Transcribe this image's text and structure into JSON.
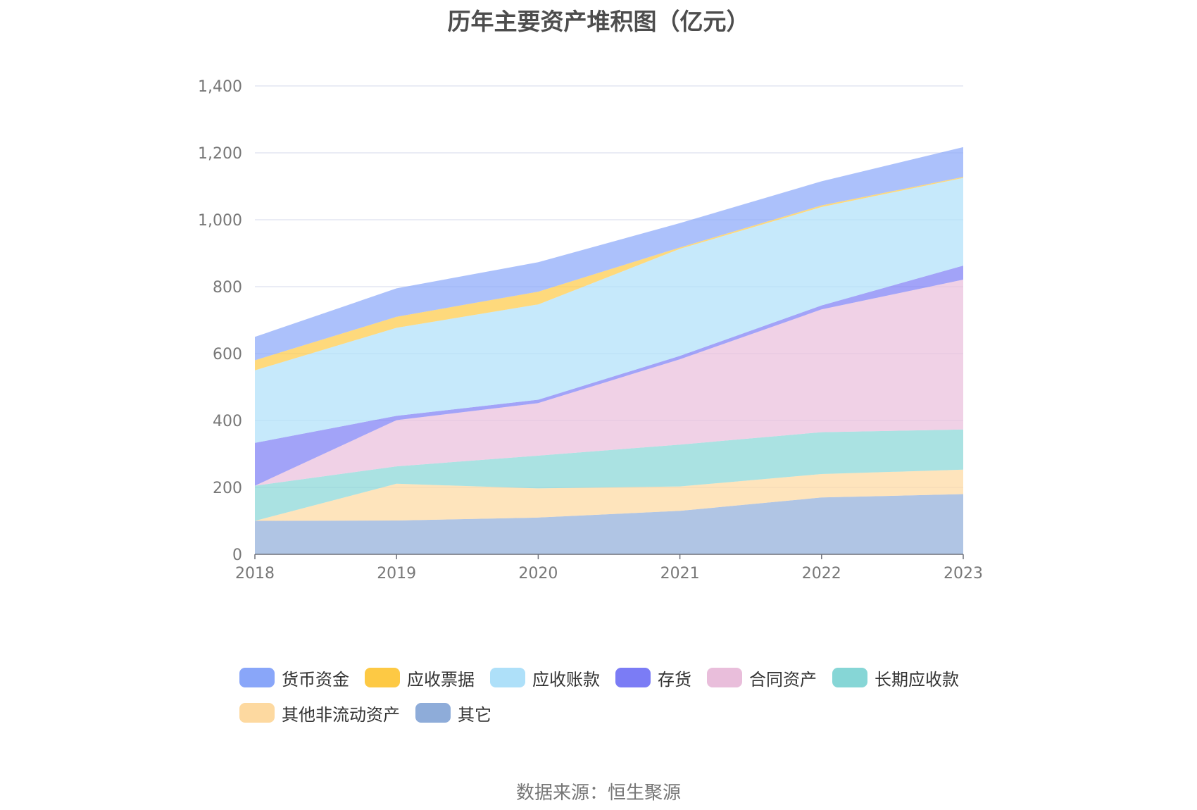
{
  "chart_data": {
    "type": "area",
    "stacked": true,
    "title": "历年主要资产堆积图（亿元）",
    "xlabel": "",
    "ylabel": "",
    "categories": [
      "2018",
      "2019",
      "2020",
      "2021",
      "2022",
      "2023"
    ],
    "ylim": [
      0,
      1400
    ],
    "yticks": [
      0,
      200,
      400,
      600,
      800,
      1000,
      1200,
      1400
    ],
    "ytick_labels": [
      "0",
      "200",
      "400",
      "600",
      "800",
      "1,000",
      "1,200",
      "1,400"
    ],
    "grid": true,
    "legend_position": "bottom",
    "series": [
      {
        "name": "其它",
        "color": "#8eacd9",
        "values": [
          100,
          101,
          110,
          130,
          170,
          180
        ]
      },
      {
        "name": "其他非流动资产",
        "color": "#fdd9a0",
        "values": [
          0,
          110,
          87,
          73,
          70,
          73
        ]
      },
      {
        "name": "长期应收款",
        "color": "#86d6d6",
        "values": [
          105,
          52,
          98,
          125,
          125,
          120
        ]
      },
      {
        "name": "合同资产",
        "color": "#e9bedb",
        "values": [
          0,
          138,
          157,
          255,
          367,
          448
        ]
      },
      {
        "name": "存货",
        "color": "#7b7cf5",
        "values": [
          128,
          13,
          10,
          10,
          12,
          42
        ]
      },
      {
        "name": "应收账款",
        "color": "#aee0f9",
        "values": [
          217,
          263,
          285,
          320,
          294,
          262
        ]
      },
      {
        "name": "应收票据",
        "color": "#fdc944",
        "values": [
          30,
          33,
          38,
          4,
          5,
          3
        ]
      },
      {
        "name": "货币资金",
        "color": "#89a6f9",
        "values": [
          70,
          85,
          88,
          73,
          72,
          89
        ]
      }
    ]
  },
  "legend": {
    "items": [
      {
        "name": "货币资金",
        "color": "#89a6f9"
      },
      {
        "name": "应收票据",
        "color": "#fdc944"
      },
      {
        "name": "应收账款",
        "color": "#aee0f9"
      },
      {
        "name": "存货",
        "color": "#7b7cf5"
      },
      {
        "name": "合同资产",
        "color": "#e9bedb"
      },
      {
        "name": "长期应收款",
        "color": "#86d6d6"
      },
      {
        "name": "其他非流动资产",
        "color": "#fdd9a0"
      },
      {
        "name": "其它",
        "color": "#8eacd9"
      }
    ]
  },
  "footer": {
    "source": "数据来源：恒生聚源"
  }
}
